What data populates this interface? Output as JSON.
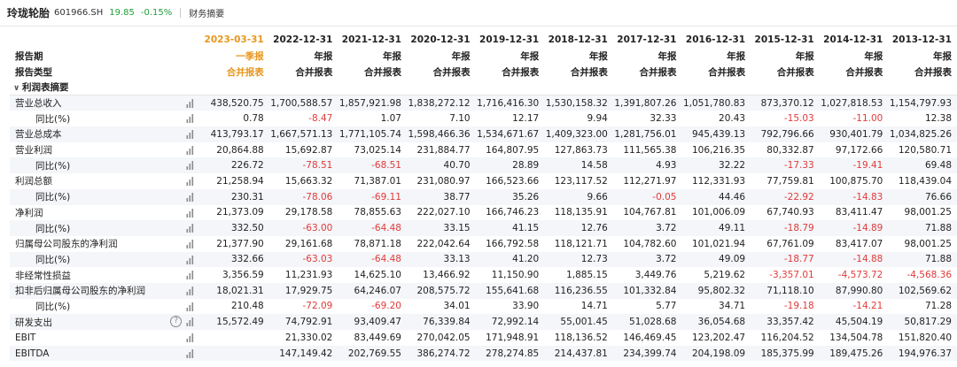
{
  "header": {
    "name": "玲珑轮胎",
    "code": "601966.SH",
    "price": "19.85",
    "change": "-0.15%",
    "section": "财务摘要"
  },
  "table": {
    "period_label": "报告期",
    "type_label": "报告类型",
    "section_title": "利润表摘要",
    "periods": [
      "2023-03-31",
      "2022-12-31",
      "2021-12-31",
      "2020-12-31",
      "2019-12-31",
      "2018-12-31",
      "2017-12-31",
      "2016-12-31",
      "2015-12-31",
      "2014-12-31",
      "2013-12-31"
    ],
    "period_kinds": [
      "一季报",
      "年报",
      "年报",
      "年报",
      "年报",
      "年报",
      "年报",
      "年报",
      "年报",
      "年报",
      "年报"
    ],
    "report_types": [
      "合并报表",
      "合并报表",
      "合并报表",
      "合并报表",
      "合并报表",
      "合并报表",
      "合并报表",
      "合并报表",
      "合并报表",
      "合并报表",
      "合并报表"
    ],
    "rows": [
      {
        "label": "营业总收入",
        "indent": false,
        "help": false,
        "values": [
          "438,520.75",
          "1,700,588.57",
          "1,857,921.98",
          "1,838,272.12",
          "1,716,416.30",
          "1,530,158.32",
          "1,391,807.26",
          "1,051,780.83",
          "873,370.12",
          "1,027,818.53",
          "1,154,797.93"
        ],
        "neg": []
      },
      {
        "label": "同比(%)",
        "indent": true,
        "help": false,
        "values": [
          "0.78",
          "-8.47",
          "1.07",
          "7.10",
          "12.17",
          "9.94",
          "32.33",
          "20.43",
          "-15.03",
          "-11.00",
          "12.38"
        ],
        "neg": [
          1,
          8,
          9
        ]
      },
      {
        "label": "营业总成本",
        "indent": false,
        "help": false,
        "values": [
          "413,793.17",
          "1,667,571.13",
          "1,771,105.74",
          "1,598,466.36",
          "1,534,671.67",
          "1,409,323.00",
          "1,281,756.01",
          "945,439.13",
          "792,796.66",
          "930,401.79",
          "1,034,825.26"
        ],
        "neg": []
      },
      {
        "label": "营业利润",
        "indent": false,
        "help": false,
        "values": [
          "20,864.88",
          "15,692.87",
          "73,025.14",
          "231,884.77",
          "164,807.95",
          "127,863.73",
          "111,565.38",
          "106,216.35",
          "80,332.87",
          "97,172.66",
          "120,580.71"
        ],
        "neg": []
      },
      {
        "label": "同比(%)",
        "indent": true,
        "help": false,
        "values": [
          "226.72",
          "-78.51",
          "-68.51",
          "40.70",
          "28.89",
          "14.58",
          "4.93",
          "32.22",
          "-17.33",
          "-19.41",
          "69.48"
        ],
        "neg": [
          1,
          2,
          8,
          9
        ]
      },
      {
        "label": "利润总额",
        "indent": false,
        "help": false,
        "values": [
          "21,258.94",
          "15,663.32",
          "71,387.01",
          "231,080.97",
          "166,523.66",
          "123,117.52",
          "112,271.97",
          "112,331.93",
          "77,759.81",
          "100,875.70",
          "118,439.04"
        ],
        "neg": []
      },
      {
        "label": "同比(%)",
        "indent": true,
        "help": false,
        "values": [
          "230.31",
          "-78.06",
          "-69.11",
          "38.77",
          "35.26",
          "9.66",
          "-0.05",
          "44.46",
          "-22.92",
          "-14.83",
          "76.66"
        ],
        "neg": [
          1,
          2,
          6,
          8,
          9
        ]
      },
      {
        "label": "净利润",
        "indent": false,
        "help": false,
        "values": [
          "21,373.09",
          "29,178.58",
          "78,855.63",
          "222,027.10",
          "166,746.23",
          "118,135.91",
          "104,767.81",
          "101,006.09",
          "67,740.93",
          "83,411.47",
          "98,001.25"
        ],
        "neg": []
      },
      {
        "label": "同比(%)",
        "indent": true,
        "help": false,
        "values": [
          "332.50",
          "-63.00",
          "-64.48",
          "33.15",
          "41.15",
          "12.76",
          "3.72",
          "49.11",
          "-18.79",
          "-14.89",
          "71.88"
        ],
        "neg": [
          1,
          2,
          8,
          9
        ]
      },
      {
        "label": "归属母公司股东的净利润",
        "indent": false,
        "help": false,
        "values": [
          "21,377.90",
          "29,161.68",
          "78,871.18",
          "222,042.64",
          "166,792.58",
          "118,121.71",
          "104,782.60",
          "101,021.94",
          "67,761.09",
          "83,417.07",
          "98,001.25"
        ],
        "neg": []
      },
      {
        "label": "同比(%)",
        "indent": true,
        "help": false,
        "values": [
          "332.66",
          "-63.03",
          "-64.48",
          "33.13",
          "41.20",
          "12.73",
          "3.72",
          "49.09",
          "-18.77",
          "-14.88",
          "71.88"
        ],
        "neg": [
          1,
          2,
          8,
          9
        ]
      },
      {
        "label": "非经常性损益",
        "indent": false,
        "help": false,
        "values": [
          "3,356.59",
          "11,231.93",
          "14,625.10",
          "13,466.92",
          "11,150.90",
          "1,885.15",
          "3,449.76",
          "5,219.62",
          "-3,357.01",
          "-4,573.72",
          "-4,568.36"
        ],
        "neg": [
          8,
          9,
          10
        ]
      },
      {
        "label": "扣非后归属母公司股东的净利润",
        "indent": false,
        "help": false,
        "values": [
          "18,021.31",
          "17,929.75",
          "64,246.07",
          "208,575.72",
          "155,641.68",
          "116,236.55",
          "101,332.84",
          "95,802.32",
          "71,118.10",
          "87,990.80",
          "102,569.62"
        ],
        "neg": []
      },
      {
        "label": "同比(%)",
        "indent": true,
        "help": false,
        "values": [
          "210.48",
          "-72.09",
          "-69.20",
          "34.01",
          "33.90",
          "14.71",
          "5.77",
          "34.71",
          "-19.18",
          "-14.21",
          "71.28"
        ],
        "neg": [
          1,
          2,
          8,
          9
        ]
      },
      {
        "label": "研发支出",
        "indent": false,
        "help": true,
        "values": [
          "15,572.49",
          "74,792.91",
          "93,409.47",
          "76,339.84",
          "72,992.14",
          "55,001.45",
          "51,028.68",
          "36,054.68",
          "33,357.42",
          "45,504.19",
          "50,817.29"
        ],
        "neg": []
      },
      {
        "label": "EBIT",
        "indent": false,
        "help": false,
        "values": [
          "",
          "21,330.02",
          "83,449.69",
          "270,042.05",
          "171,948.91",
          "118,136.52",
          "146,469.45",
          "123,202.47",
          "116,204.52",
          "134,504.78",
          "151,820.40"
        ],
        "neg": []
      },
      {
        "label": "EBITDA",
        "indent": false,
        "help": false,
        "values": [
          "",
          "147,149.42",
          "202,769.55",
          "386,274.72",
          "278,274.85",
          "214,437.81",
          "234,399.74",
          "204,198.09",
          "185,375.99",
          "189,475.26",
          "194,976.37"
        ],
        "neg": []
      }
    ]
  },
  "colors": {
    "accent": "#e8961c",
    "negative": "#e03a3a",
    "price": "#1f9d3a",
    "row_shade": "#f4f6f9"
  },
  "icons": {
    "chart": "bar-chart-icon",
    "help": "help-icon",
    "collapse": "chevron-down-icon"
  }
}
